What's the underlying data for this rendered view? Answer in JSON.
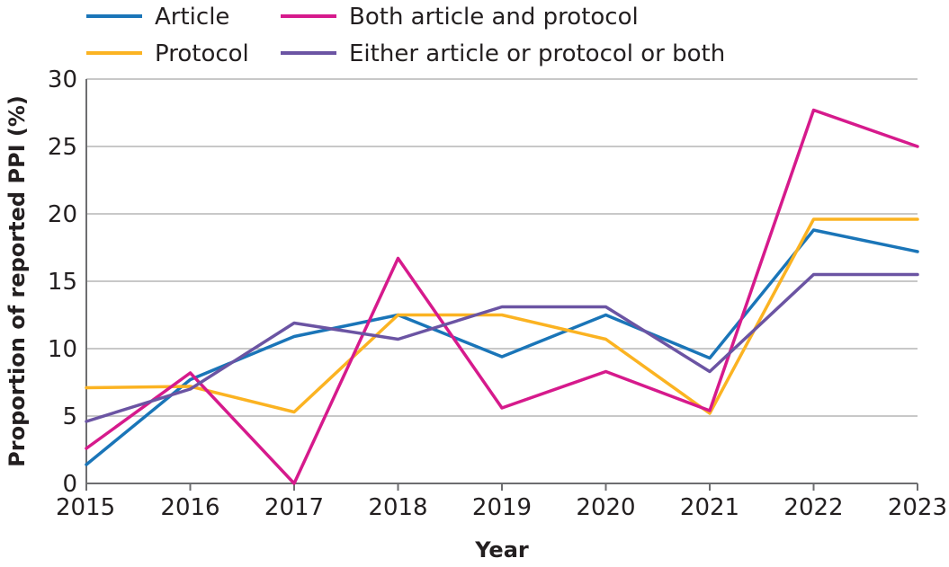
{
  "chart_data": {
    "type": "line",
    "title": "",
    "xlabel": "Year",
    "ylabel": "Proportion of reported PPI (%)",
    "x": [
      "2015",
      "2016",
      "2017",
      "2018",
      "2019",
      "2020",
      "2021",
      "2022",
      "2023"
    ],
    "ylim": [
      0,
      30
    ],
    "yticks": [
      "0",
      "5",
      "10",
      "15",
      "20",
      "25",
      "30"
    ],
    "grid": true,
    "legend_position": "top-left",
    "series": [
      {
        "name": "Article",
        "color": "#1a75b8",
        "values": [
          1.4,
          7.7,
          10.9,
          12.5,
          9.4,
          12.5,
          9.3,
          18.8,
          17.2
        ]
      },
      {
        "name": "Protocol",
        "color": "#fbb322",
        "values": [
          7.1,
          7.2,
          5.3,
          12.5,
          12.5,
          10.7,
          5.2,
          19.6,
          19.6
        ]
      },
      {
        "name": "Both article and protocol",
        "color": "#d61a8c",
        "values": [
          2.6,
          8.2,
          0.0,
          16.7,
          5.6,
          8.3,
          5.4,
          27.7,
          25.0
        ]
      },
      {
        "name": "Either article or protocol or both",
        "color": "#6b54a3",
        "values": [
          4.6,
          7.0,
          11.9,
          10.7,
          13.1,
          13.1,
          8.3,
          15.5,
          15.5
        ]
      }
    ]
  }
}
